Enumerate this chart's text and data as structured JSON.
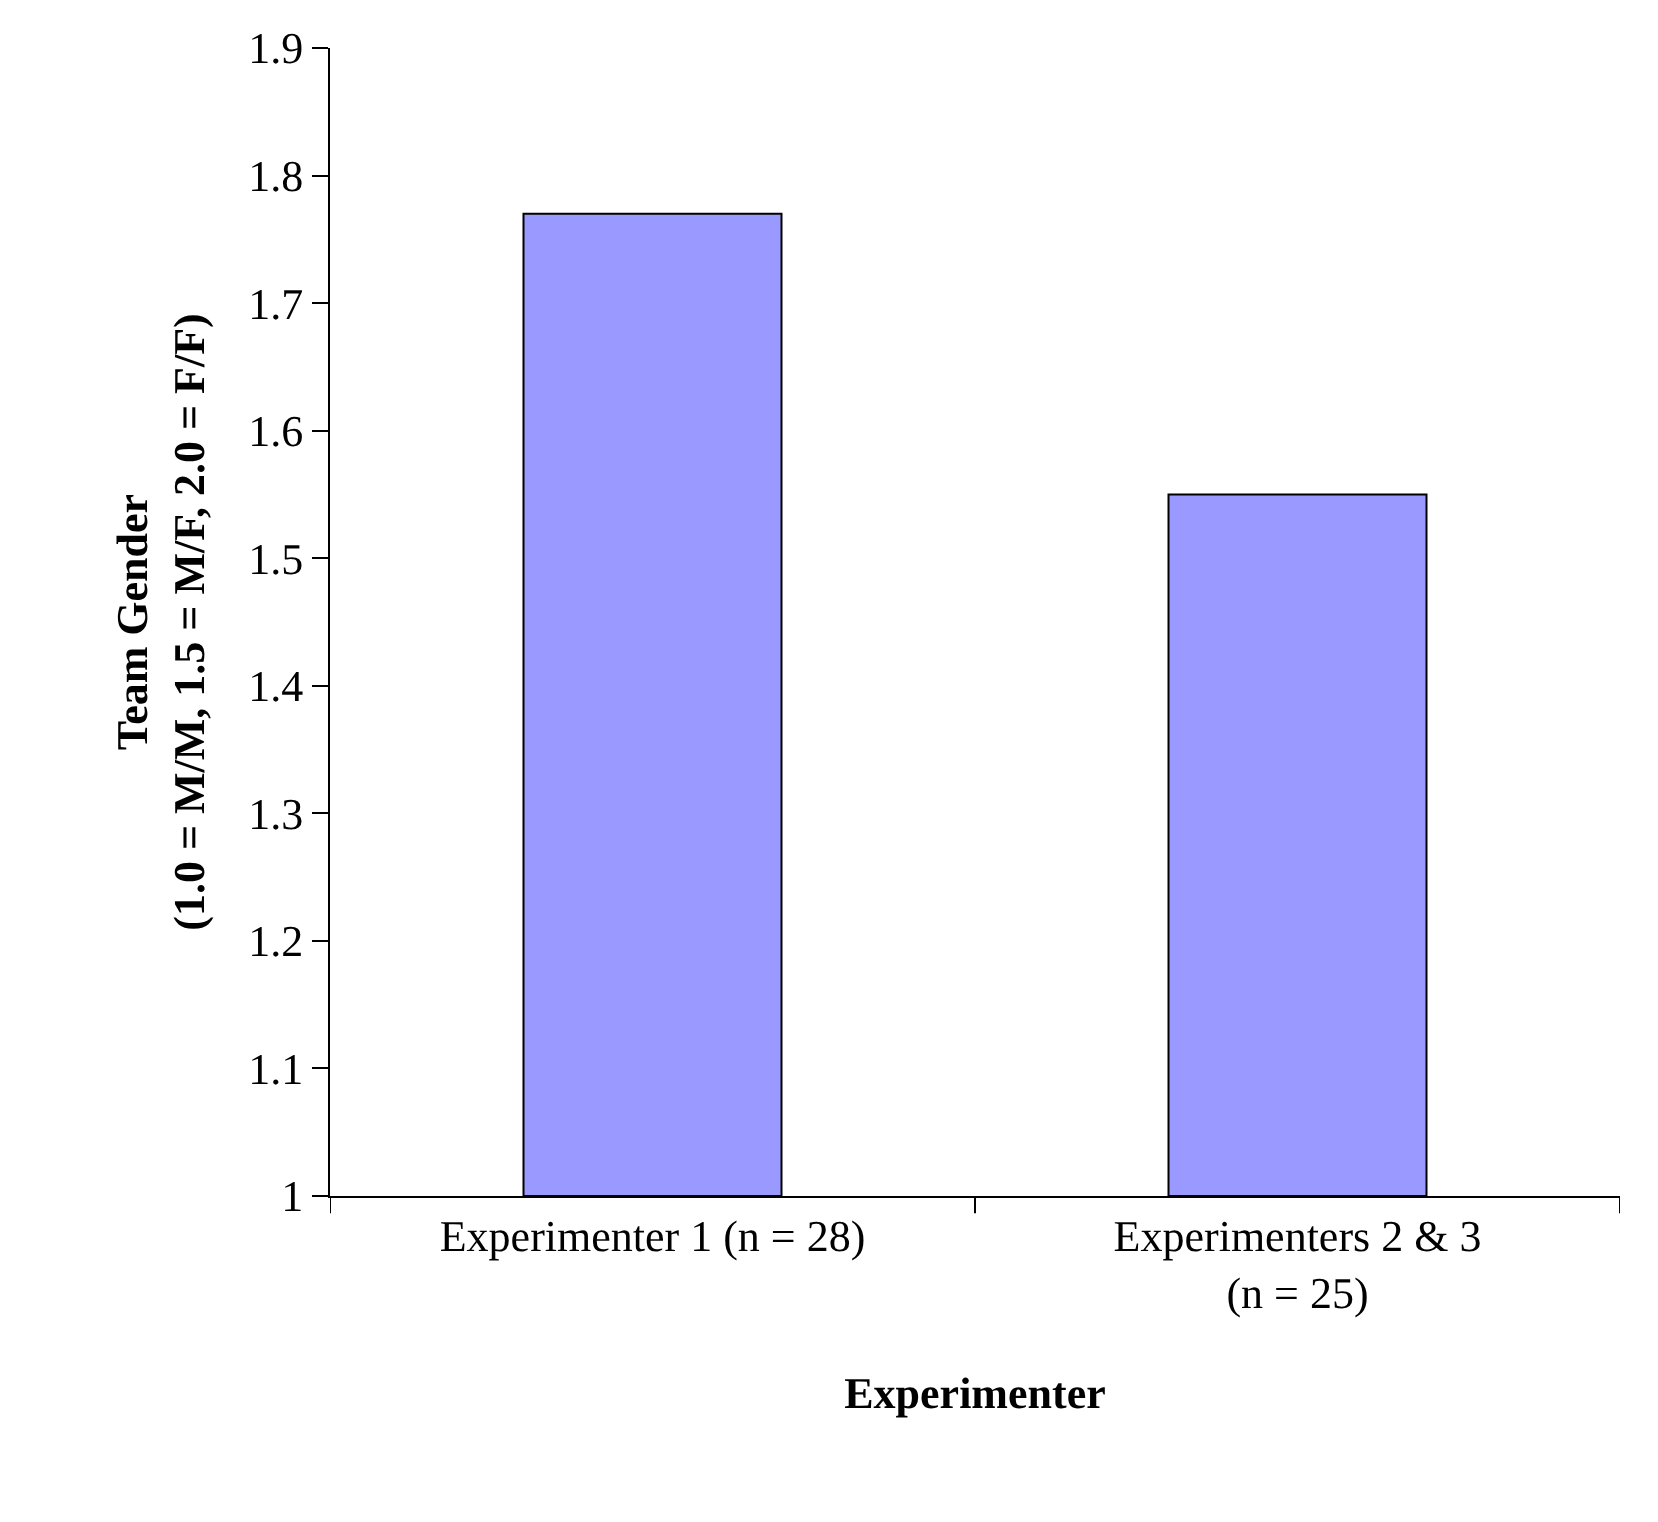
{
  "chart_data": {
    "type": "bar",
    "xlabel": "Experimenter",
    "ylabel": "Team Gender\n(1.0 = M/M, 1.5 = M/F, 2.0 = F/F)",
    "categories": [
      "Experimenter 1 (n = 28)",
      "Experimenters 2 & 3 (n = 25)"
    ],
    "values": [
      1.77,
      1.55
    ],
    "color": "#9999ff",
    "ylim": [
      1,
      1.9
    ],
    "yticks": [
      1,
      1.1,
      1.2,
      1.3,
      1.4,
      1.5,
      1.6,
      1.7,
      1.8,
      1.9
    ]
  }
}
